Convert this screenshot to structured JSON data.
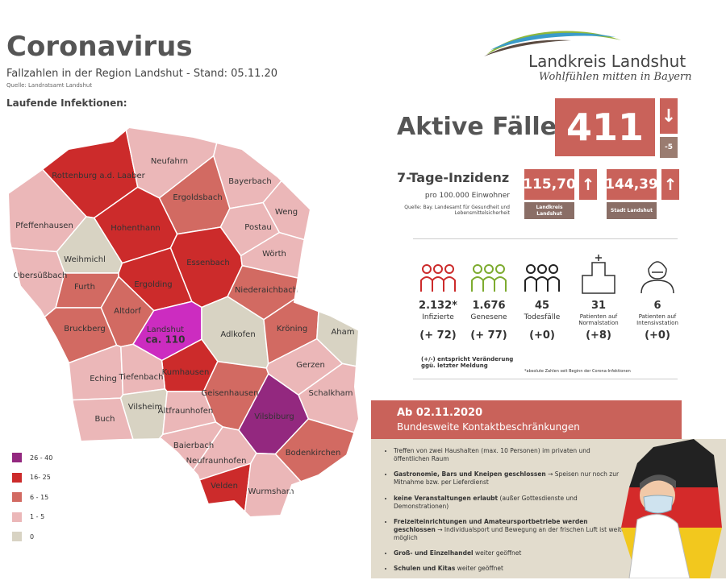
{
  "header": {
    "title": "Coronavirus",
    "subtitle": "Fallzahlen in der Region Landshut - Stand: 05.11.20",
    "source": "Quelle: Landratsamt Landshut",
    "section": "Laufende Infektionen:"
  },
  "logo": {
    "name": "Landkreis Landshut",
    "tagline": "Wohlfühlen mitten in Bayern"
  },
  "active": {
    "label": "Aktive Fälle",
    "value": "411",
    "change": "-5"
  },
  "incidence": {
    "title": "7-Tage-Inzidenz",
    "subtitle": "pro 100.000 Einwohner",
    "source": "Quelle: Bay. Landesamt für Gesundheit und Lebensmittelsicherheit",
    "items": [
      {
        "value": "115,70",
        "label": "Landkreis Landshut"
      },
      {
        "value": "144,39",
        "label": "Stadt Landshut"
      }
    ]
  },
  "stats": [
    {
      "value": "2.132*",
      "label": "Infizierte",
      "change": "(+ 72)"
    },
    {
      "value": "1.676",
      "label": "Genesene",
      "change": "(+ 77)"
    },
    {
      "value": "45",
      "label": "Todesfälle",
      "change": "(+0)"
    },
    {
      "value": "31",
      "label": "Patienten auf Normalstation",
      "change": "(+8)"
    },
    {
      "value": "6",
      "label": "Patienten auf Intensivstation",
      "change": "(+0)"
    }
  ],
  "notes": {
    "change": "(+/-) entspricht Veränderung ggü. letzter Meldung",
    "footnote": "*absolute Zahlen seit Beginn der Corona-Infektionen"
  },
  "measures": {
    "date": "Ab 02.11.2020",
    "title": "Bundesweite Kontaktbeschränkungen",
    "items": [
      {
        "text": "Treffen von zwei Haushalten (max. 10 Personen) im privaten und öffentlichen Raum"
      },
      {
        "bold": "Gastronomie, Bars und Kneipen geschlossen",
        "text": "→ Speisen nur noch zur Mitnahme bzw. per Lieferdienst"
      },
      {
        "bold": "keine Veranstaltungen erlaubt",
        "text": "(außer Gottesdienste und Demonstrationen)"
      },
      {
        "bold": "Freizeiteinrichtungen und Amateursportbetriebe werden geschlossen",
        "text": "→ Individualsport und Bewegung an der frischen Luft ist weiter möglich"
      },
      {
        "bold": "Groß- und Einzelhandel",
        "text": "weiter geöffnet"
      },
      {
        "bold": "Schulen und Kitas",
        "text": "weiter geöffnet"
      }
    ]
  },
  "legend": [
    {
      "label": "26 - 40",
      "color": "#93287f"
    },
    {
      "label": "16- 25",
      "color": "#cc2b2b"
    },
    {
      "label": "6 - 15",
      "color": "#d26a62"
    },
    {
      "label": "1 - 5",
      "color": "#ebb7b8"
    },
    {
      "label": "0",
      "color": "#d8d3c3"
    }
  ],
  "map": {
    "regions": [
      {
        "name": "Rottenburg a.d. Laaber",
        "color": "#cc2b2b"
      },
      {
        "name": "Neufahrn",
        "color": "#ebb7b8"
      },
      {
        "name": "Bayerbach",
        "color": "#ebb7b8"
      },
      {
        "name": "Ergoldsbach",
        "color": "#d26a62"
      },
      {
        "name": "Weng",
        "color": "#ebb7b8"
      },
      {
        "name": "Pfeffenhausen",
        "color": "#ebb7b8"
      },
      {
        "name": "Hohenthann",
        "color": "#cc2b2b"
      },
      {
        "name": "Postau",
        "color": "#ebb7b8"
      },
      {
        "name": "Weihmichl",
        "color": "#d8d3c3"
      },
      {
        "name": "Obersüßbach",
        "color": "#ebb7b8"
      },
      {
        "name": "Essenbach",
        "color": "#cc2b2b"
      },
      {
        "name": "Wörth",
        "color": "#ebb7b8"
      },
      {
        "name": "Furth",
        "color": "#d26a62"
      },
      {
        "name": "Ergolding",
        "color": "#cc2b2b"
      },
      {
        "name": "Niederaichbach",
        "color": "#d26a62"
      },
      {
        "name": "Altdorf",
        "color": "#d26a62"
      },
      {
        "name": "Bruckberg",
        "color": "#d26a62"
      },
      {
        "name": "Landshut",
        "color": "#cc2cc0",
        "note": "ca. 110"
      },
      {
        "name": "Adlkofen",
        "color": "#d8d3c3"
      },
      {
        "name": "Kröning",
        "color": "#d26a62"
      },
      {
        "name": "Aham",
        "color": "#d8d3c3"
      },
      {
        "name": "Kumhausen",
        "color": "#cc2b2b"
      },
      {
        "name": "Gerzen",
        "color": "#ebb7b8"
      },
      {
        "name": "Eching",
        "color": "#ebb7b8"
      },
      {
        "name": "Tiefenbach",
        "color": "#ebb7b8"
      },
      {
        "name": "Schalkham",
        "color": "#ebb7b8"
      },
      {
        "name": "Geisenhausen",
        "color": "#d26a62"
      },
      {
        "name": "Vilsheim",
        "color": "#d8d3c3"
      },
      {
        "name": "Altfraunhofen",
        "color": "#ebb7b8"
      },
      {
        "name": "Vilsbiburg",
        "color": "#93287f"
      },
      {
        "name": "Buch",
        "color": "#ebb7b8"
      },
      {
        "name": "Baierbach",
        "color": "#ebb7b8"
      },
      {
        "name": "Neufraunhofen",
        "color": "#ebb7b8"
      },
      {
        "name": "Bodenkirchen",
        "color": "#d26a62"
      },
      {
        "name": "Velden",
        "color": "#cc2b2b"
      },
      {
        "name": "Wurmsham",
        "color": "#ebb7b8"
      }
    ]
  }
}
